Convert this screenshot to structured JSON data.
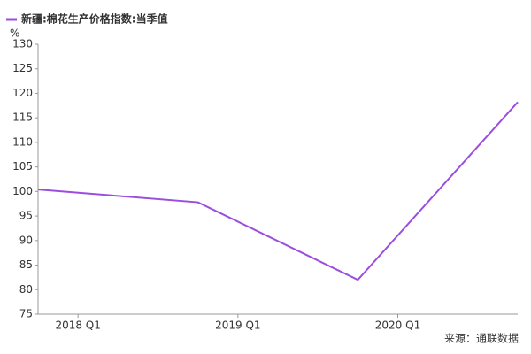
{
  "chart_data": {
    "type": "line",
    "legend_position": "top-left",
    "y_unit": "%",
    "source": "来源：通联数据",
    "x": [
      2017.75,
      2018.75,
      2019.75,
      2020.75
    ],
    "xlim": [
      2017.75,
      2020.75
    ],
    "xticks": [
      {
        "value": 2018,
        "label": "2018 Q1"
      },
      {
        "value": 2019,
        "label": "2019 Q1"
      },
      {
        "value": 2020,
        "label": "2020 Q1"
      }
    ],
    "series": [
      {
        "name": "新疆:棉花生产价格指数:当季值",
        "color": "#9b4de0",
        "values": [
          100.4,
          97.8,
          82.0,
          118.2
        ]
      }
    ],
    "ylim": [
      75,
      130
    ],
    "yticks": [
      75,
      80,
      85,
      90,
      95,
      100,
      105,
      110,
      115,
      120,
      125,
      130
    ],
    "grid": false
  }
}
